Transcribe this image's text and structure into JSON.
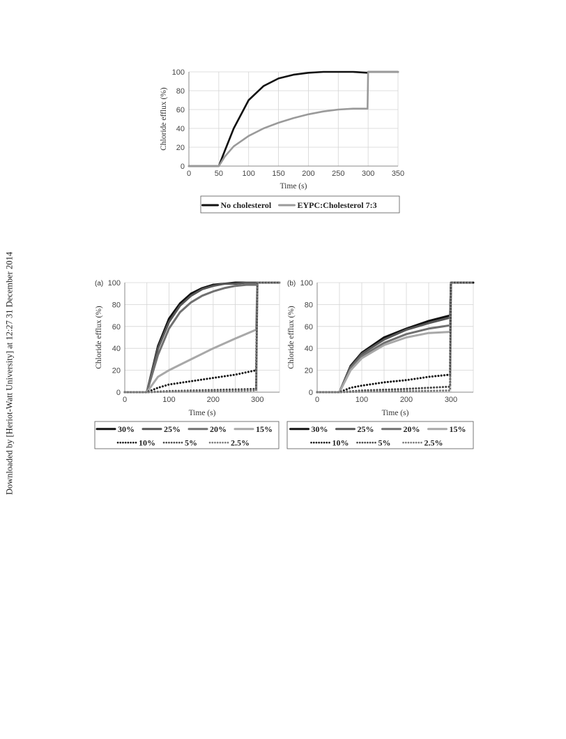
{
  "side_note": "Downloaded by [Heriot-Watt University] at 12:27 31 December 2014",
  "chart_data": [
    {
      "type": "line",
      "panel_label": "",
      "xlabel": "Time  (s)",
      "ylabel": "Chloride  efflux  (%)",
      "xlim": [
        0,
        350
      ],
      "ylim": [
        0,
        100
      ],
      "xticks": [
        0,
        50,
        100,
        150,
        200,
        250,
        300,
        350
      ],
      "yticks": [
        0,
        20,
        40,
        60,
        80,
        100
      ],
      "grid": true,
      "legend_position": "bottom",
      "series": [
        {
          "name": "No cholesterol",
          "color": "#111111",
          "style": "solid",
          "x": [
            0,
            48,
            50,
            60,
            75,
            100,
            125,
            150,
            175,
            200,
            225,
            250,
            275,
            299,
            300,
            325,
            350
          ],
          "y": [
            0,
            0,
            0,
            16,
            40,
            70,
            85,
            93,
            97,
            99,
            100,
            100,
            100,
            99,
            100,
            100,
            100
          ]
        },
        {
          "name": "EYPC:Cholesterol 7:3",
          "color": "#9a9a9a",
          "style": "solid",
          "x": [
            0,
            48,
            50,
            60,
            75,
            100,
            125,
            150,
            175,
            200,
            225,
            250,
            275,
            299,
            300,
            325,
            350
          ],
          "y": [
            0,
            0,
            0,
            10,
            21,
            32,
            40,
            46,
            51,
            55,
            58,
            60,
            61,
            61,
            100,
            100,
            100
          ]
        }
      ]
    },
    {
      "type": "line",
      "panel_label": "(a)",
      "xlabel": "Time  (s)",
      "ylabel": "Chloride  efflux  (%)",
      "xlim": [
        0,
        350
      ],
      "ylim": [
        0,
        100
      ],
      "xticks": [
        0,
        100,
        200,
        300
      ],
      "yticks": [
        0,
        20,
        40,
        60,
        80,
        100
      ],
      "grid": true,
      "legend_position": "bottom",
      "series": [
        {
          "name": "30%",
          "color": "#111111",
          "style": "solid",
          "x": [
            0,
            48,
            50,
            75,
            100,
            125,
            150,
            175,
            200,
            225,
            250,
            275,
            300,
            350
          ],
          "y": [
            0,
            0,
            0,
            42,
            67,
            81,
            90,
            95,
            98,
            99,
            100,
            100,
            100,
            100
          ]
        },
        {
          "name": "25%",
          "color": "#555555",
          "style": "solid",
          "x": [
            0,
            48,
            50,
            75,
            100,
            125,
            150,
            175,
            200,
            225,
            250,
            275,
            300,
            350
          ],
          "y": [
            0,
            0,
            0,
            40,
            64,
            79,
            88,
            94,
            97,
            99,
            99,
            100,
            100,
            100
          ]
        },
        {
          "name": "20%",
          "color": "#707070",
          "style": "solid",
          "x": [
            0,
            48,
            50,
            75,
            100,
            125,
            150,
            175,
            200,
            225,
            250,
            275,
            298,
            300,
            350
          ],
          "y": [
            0,
            0,
            0,
            34,
            58,
            73,
            82,
            88,
            92,
            95,
            97,
            98,
            98,
            100,
            100
          ]
        },
        {
          "name": "15%",
          "color": "#a8a8a8",
          "style": "solid",
          "x": [
            0,
            48,
            50,
            75,
            100,
            150,
            200,
            250,
            297,
            300,
            350
          ],
          "y": [
            0,
            0,
            0,
            14,
            20,
            30,
            40,
            49,
            57,
            100,
            100
          ]
        },
        {
          "name": "10%",
          "color": "#111111",
          "style": "dotted",
          "x": [
            0,
            48,
            50,
            75,
            100,
            150,
            200,
            250,
            297,
            300,
            350
          ],
          "y": [
            0,
            0,
            0,
            4,
            7,
            10,
            13,
            16,
            20,
            100,
            100
          ]
        },
        {
          "name": "5%",
          "color": "#444444",
          "style": "dotted",
          "x": [
            0,
            48,
            50,
            100,
            200,
            297,
            300,
            350
          ],
          "y": [
            0,
            0,
            0,
            1,
            2,
            3,
            100,
            100
          ]
        },
        {
          "name": "2.5%",
          "color": "#777777",
          "style": "dotted",
          "x": [
            0,
            48,
            50,
            100,
            200,
            297,
            300,
            350
          ],
          "y": [
            0,
            0,
            0,
            0.5,
            1,
            1.5,
            100,
            100
          ]
        }
      ]
    },
    {
      "type": "line",
      "panel_label": "(b)",
      "xlabel": "Time  (s)",
      "ylabel": "Chloride  efflux  (%)",
      "xlim": [
        0,
        350
      ],
      "ylim": [
        0,
        100
      ],
      "xticks": [
        0,
        100,
        200,
        300
      ],
      "yticks": [
        0,
        20,
        40,
        60,
        80,
        100
      ],
      "grid": true,
      "legend_position": "bottom",
      "series": [
        {
          "name": "30%",
          "color": "#111111",
          "style": "solid",
          "x": [
            0,
            48,
            50,
            75,
            100,
            150,
            200,
            250,
            298,
            300,
            350
          ],
          "y": [
            0,
            0,
            0,
            24,
            36,
            50,
            58,
            65,
            70,
            100,
            100
          ]
        },
        {
          "name": "25%",
          "color": "#555555",
          "style": "solid",
          "x": [
            0,
            48,
            50,
            75,
            100,
            150,
            200,
            250,
            298,
            300,
            350
          ],
          "y": [
            0,
            0,
            0,
            23,
            35,
            48,
            57,
            63,
            68,
            100,
            100
          ]
        },
        {
          "name": "20%",
          "color": "#707070",
          "style": "solid",
          "x": [
            0,
            48,
            50,
            75,
            100,
            150,
            200,
            250,
            298,
            300,
            350
          ],
          "y": [
            0,
            0,
            0,
            22,
            33,
            45,
            53,
            58,
            61,
            100,
            100
          ]
        },
        {
          "name": "15%",
          "color": "#a8a8a8",
          "style": "solid",
          "x": [
            0,
            48,
            50,
            75,
            100,
            150,
            200,
            250,
            298,
            300,
            350
          ],
          "y": [
            0,
            0,
            0,
            20,
            31,
            43,
            50,
            54,
            55,
            100,
            100
          ]
        },
        {
          "name": "10%",
          "color": "#111111",
          "style": "dotted",
          "x": [
            0,
            48,
            50,
            75,
            100,
            150,
            200,
            250,
            298,
            300,
            350
          ],
          "y": [
            0,
            0,
            0,
            4,
            6,
            9,
            11,
            14,
            16,
            100,
            100
          ]
        },
        {
          "name": "5%",
          "color": "#444444",
          "style": "dotted",
          "x": [
            0,
            48,
            50,
            100,
            200,
            298,
            300,
            350
          ],
          "y": [
            0,
            0,
            0,
            1.5,
            3,
            5,
            100,
            100
          ]
        },
        {
          "name": "2.5%",
          "color": "#777777",
          "style": "dotted",
          "x": [
            0,
            48,
            50,
            100,
            200,
            298,
            300,
            350
          ],
          "y": [
            0,
            0,
            0,
            0.5,
            1,
            1.5,
            100,
            100
          ]
        }
      ]
    }
  ]
}
